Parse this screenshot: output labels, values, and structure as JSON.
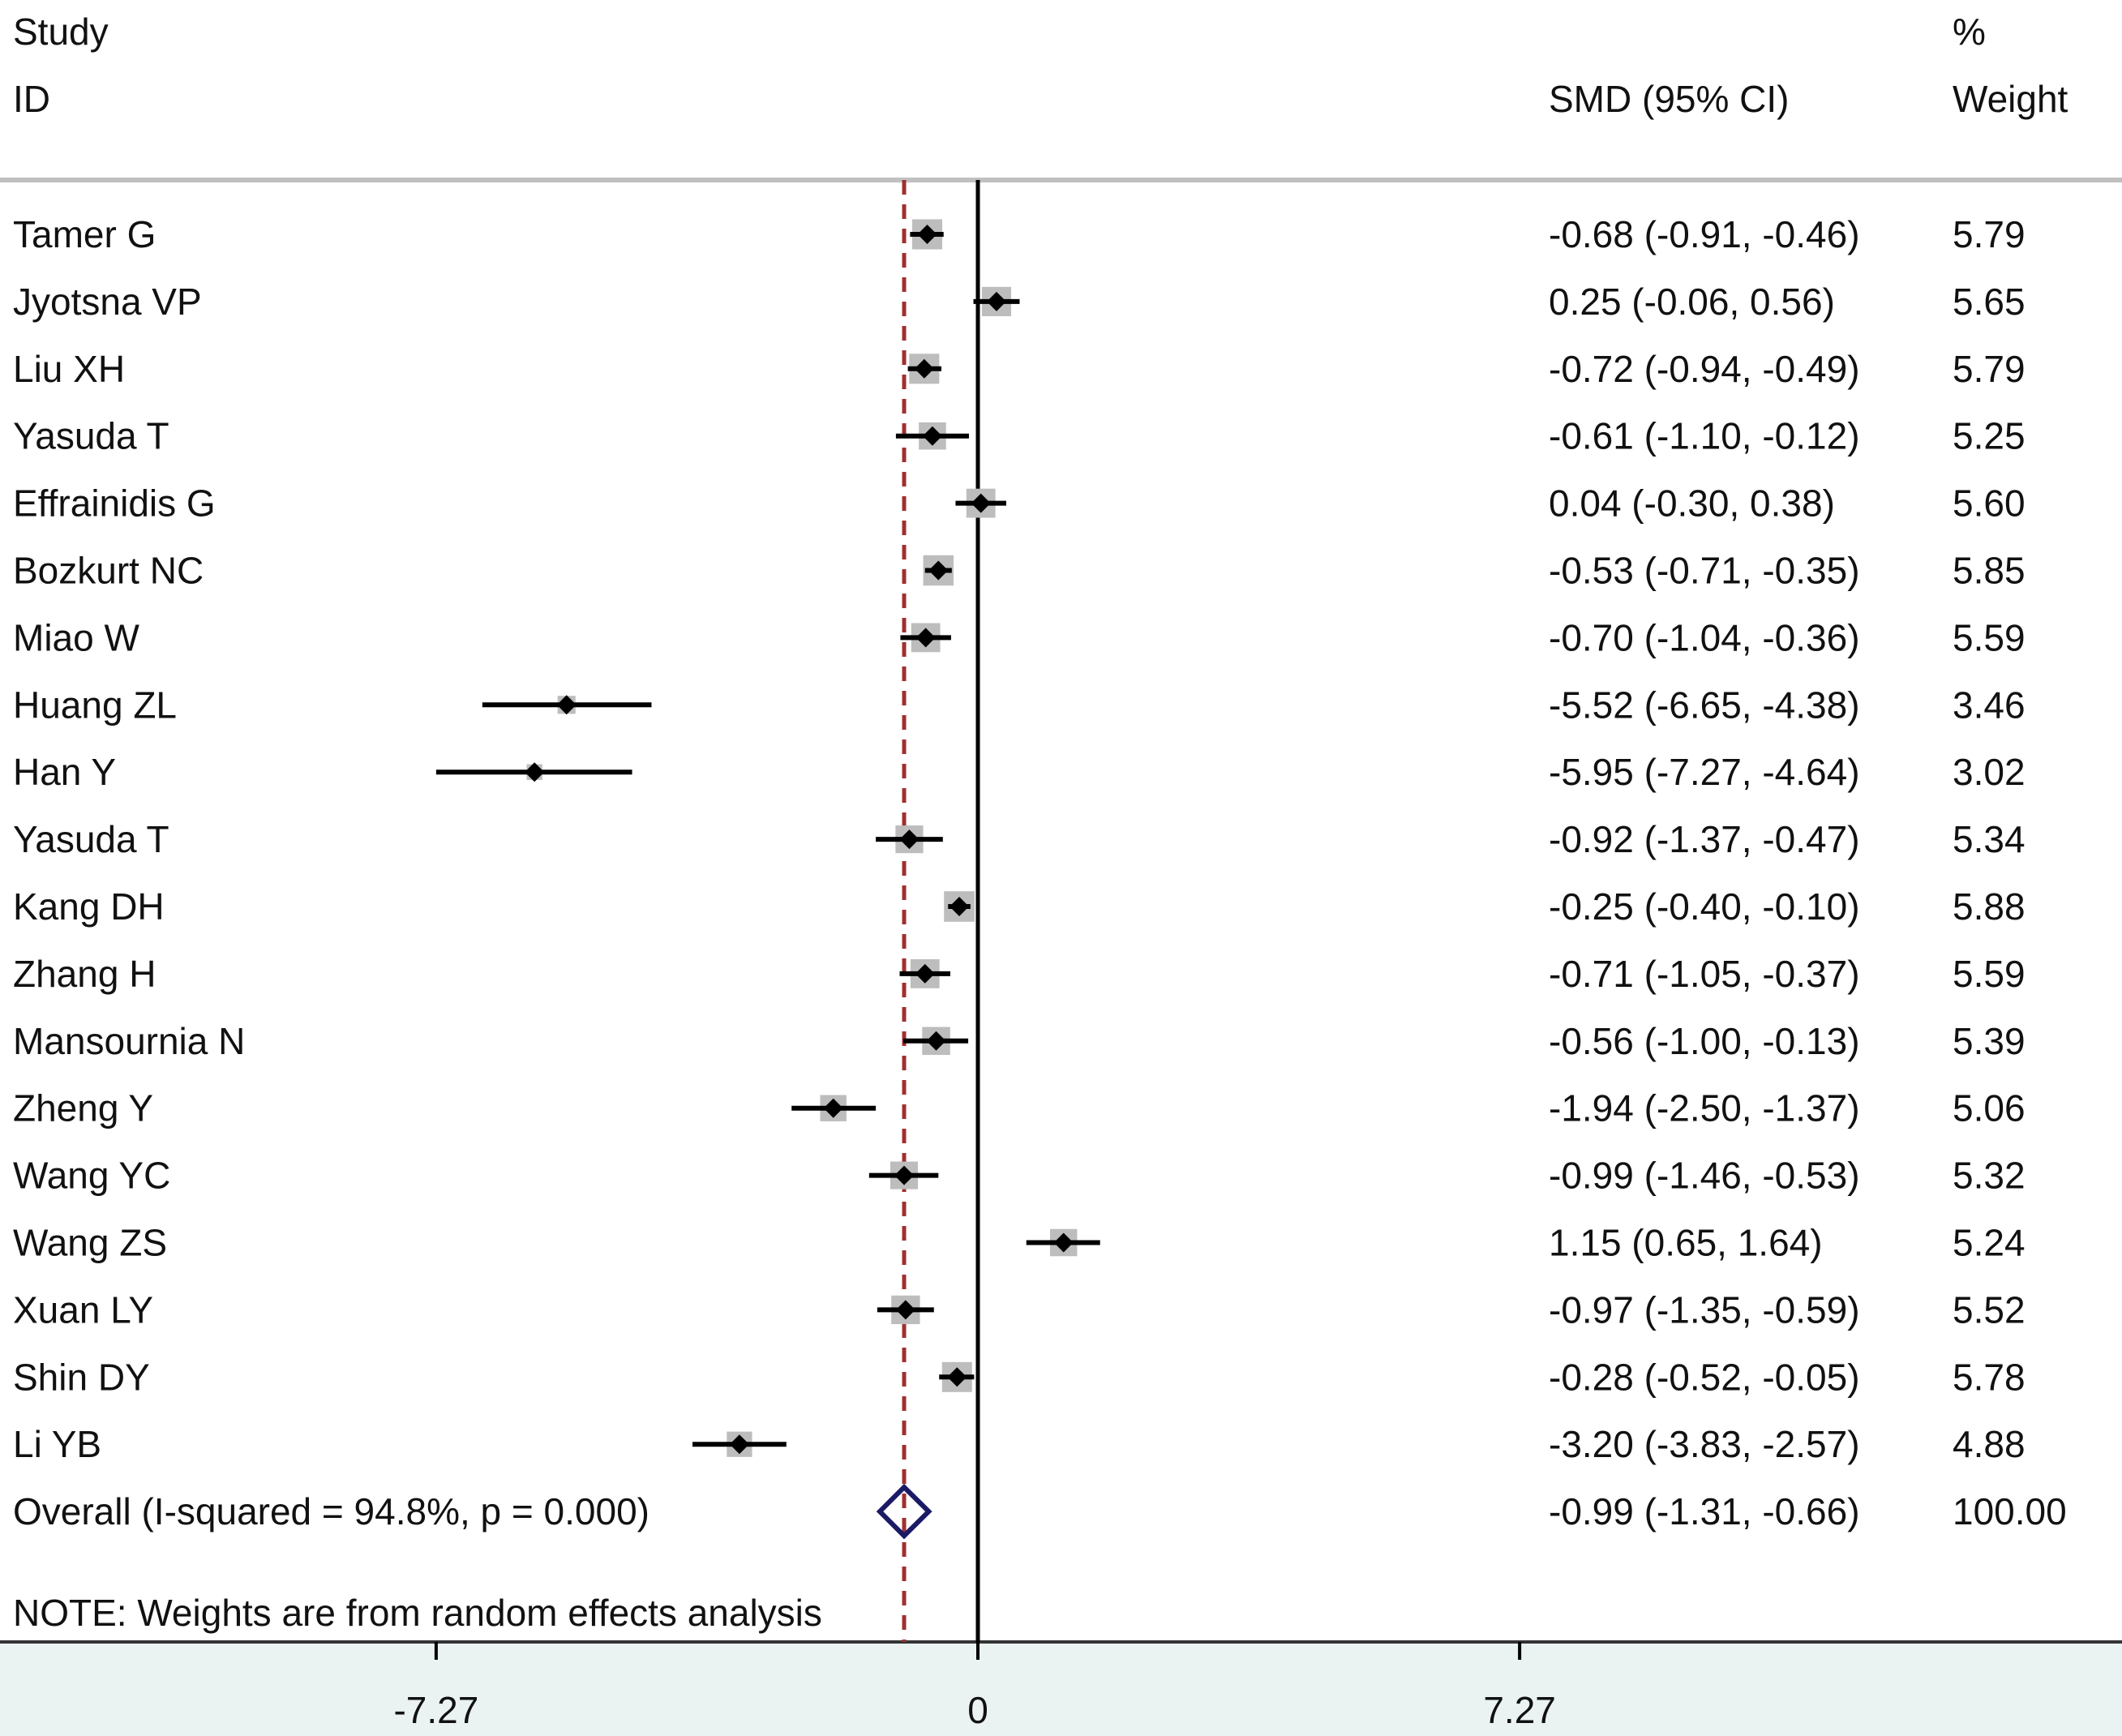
{
  "headers": {
    "study": "Study",
    "id": "ID",
    "effect": "SMD (95% CI)",
    "weight_pct": "%",
    "weight": "Weight"
  },
  "note": "NOTE: Weights are from random effects analysis",
  "colors": {
    "box": "#bdbdbd",
    "point": "#000000",
    "overall_diamond": "#1a1a66",
    "overall_line": "#a03030",
    "header_rule": "#c0c0c0",
    "axis_band": "#eaf2f2"
  },
  "chart_data": {
    "type": "forest",
    "xlabel": "",
    "xlim": [
      -9.1,
      14.5
    ],
    "xticks": [
      -7.27,
      0,
      7.27
    ],
    "xtick_labels": [
      "-7.27",
      "0",
      "7.27"
    ],
    "null_line": 0,
    "studies": [
      {
        "name": "Tamer G",
        "smd": -0.68,
        "lo": -0.91,
        "hi": -0.46,
        "ci_text": "-0.68 (-0.91, -0.46)",
        "weight": "5.79"
      },
      {
        "name": "Jyotsna VP",
        "smd": 0.25,
        "lo": -0.06,
        "hi": 0.56,
        "ci_text": "0.25 (-0.06, 0.56)",
        "weight": "5.65"
      },
      {
        "name": "Liu XH",
        "smd": -0.72,
        "lo": -0.94,
        "hi": -0.49,
        "ci_text": "-0.72 (-0.94, -0.49)",
        "weight": "5.79"
      },
      {
        "name": "Yasuda T",
        "smd": -0.61,
        "lo": -1.1,
        "hi": -0.12,
        "ci_text": "-0.61 (-1.10, -0.12)",
        "weight": "5.25"
      },
      {
        "name": "Effrainidis G",
        "smd": 0.04,
        "lo": -0.3,
        "hi": 0.38,
        "ci_text": "0.04 (-0.30, 0.38)",
        "weight": "5.60"
      },
      {
        "name": "Bozkurt NC",
        "smd": -0.53,
        "lo": -0.71,
        "hi": -0.35,
        "ci_text": "-0.53 (-0.71, -0.35)",
        "weight": "5.85"
      },
      {
        "name": "Miao W",
        "smd": -0.7,
        "lo": -1.04,
        "hi": -0.36,
        "ci_text": "-0.70 (-1.04, -0.36)",
        "weight": "5.59"
      },
      {
        "name": "Huang ZL",
        "smd": -5.52,
        "lo": -6.65,
        "hi": -4.38,
        "ci_text": "-5.52 (-6.65, -4.38)",
        "weight": "3.46"
      },
      {
        "name": "Han Y",
        "smd": -5.95,
        "lo": -7.27,
        "hi": -4.64,
        "ci_text": "-5.95 (-7.27, -4.64)",
        "weight": "3.02"
      },
      {
        "name": "Yasuda T",
        "smd": -0.92,
        "lo": -1.37,
        "hi": -0.47,
        "ci_text": "-0.92 (-1.37, -0.47)",
        "weight": "5.34"
      },
      {
        "name": "Kang DH",
        "smd": -0.25,
        "lo": -0.4,
        "hi": -0.1,
        "ci_text": "-0.25 (-0.40, -0.10)",
        "weight": "5.88"
      },
      {
        "name": "Zhang H",
        "smd": -0.71,
        "lo": -1.05,
        "hi": -0.37,
        "ci_text": "-0.71 (-1.05, -0.37)",
        "weight": "5.59"
      },
      {
        "name": "Mansournia N",
        "smd": -0.56,
        "lo": -1.0,
        "hi": -0.13,
        "ci_text": "-0.56 (-1.00, -0.13)",
        "weight": "5.39"
      },
      {
        "name": "Zheng Y",
        "smd": -1.94,
        "lo": -2.5,
        "hi": -1.37,
        "ci_text": "-1.94 (-2.50, -1.37)",
        "weight": "5.06"
      },
      {
        "name": "Wang YC",
        "smd": -0.99,
        "lo": -1.46,
        "hi": -0.53,
        "ci_text": "-0.99 (-1.46, -0.53)",
        "weight": "5.32"
      },
      {
        "name": "Wang ZS",
        "smd": 1.15,
        "lo": 0.65,
        "hi": 1.64,
        "ci_text": "1.15 (0.65, 1.64)",
        "weight": "5.24"
      },
      {
        "name": "Xuan LY",
        "smd": -0.97,
        "lo": -1.35,
        "hi": -0.59,
        "ci_text": "-0.97 (-1.35, -0.59)",
        "weight": "5.52"
      },
      {
        "name": "Shin DY",
        "smd": -0.28,
        "lo": -0.52,
        "hi": -0.05,
        "ci_text": "-0.28 (-0.52, -0.05)",
        "weight": "5.78"
      },
      {
        "name": "Li YB",
        "smd": -3.2,
        "lo": -3.83,
        "hi": -2.57,
        "ci_text": "-3.20 (-3.83, -2.57)",
        "weight": "4.88"
      }
    ],
    "overall": {
      "label": "Overall  (I-squared = 94.8%, p = 0.000)",
      "smd": -0.99,
      "lo": -1.31,
      "hi": -0.66,
      "ci_text": "-0.99 (-1.31, -0.66)",
      "weight": "100.00"
    }
  }
}
